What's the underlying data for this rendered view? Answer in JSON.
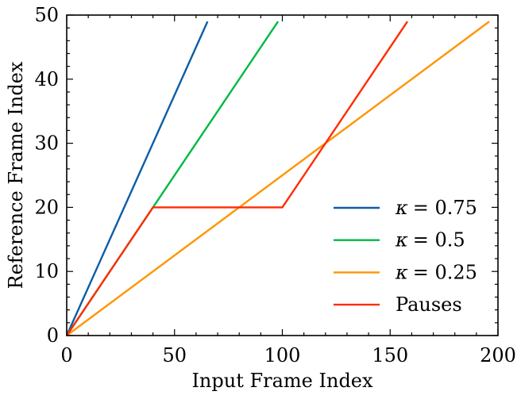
{
  "chart_data": {
    "type": "line",
    "xlabel": "Input Frame Index",
    "ylabel": "Reference Frame Index",
    "xlim": [
      0,
      200
    ],
    "ylim": [
      0,
      50
    ],
    "xticks": [
      0,
      50,
      100,
      150,
      200
    ],
    "yticks": [
      0,
      10,
      20,
      30,
      40,
      50
    ],
    "grid": false,
    "legend_position": "lower-right",
    "series": [
      {
        "name": "κ = 0.75",
        "legend_symbol": "κ",
        "legend_value": "= 0.75",
        "color": "#0C5DA5",
        "points": [
          [
            0,
            0
          ],
          [
            65.3,
            49
          ]
        ]
      },
      {
        "name": "κ = 0.5",
        "legend_symbol": "κ",
        "legend_value": "= 0.5",
        "color": "#00B945",
        "points": [
          [
            0,
            0
          ],
          [
            98,
            49
          ]
        ]
      },
      {
        "name": "κ = 0.25",
        "legend_symbol": "κ",
        "legend_value": "= 0.25",
        "color": "#FF9500",
        "points": [
          [
            0,
            0
          ],
          [
            196,
            49
          ]
        ]
      },
      {
        "name": "Pauses",
        "legend_symbol": "",
        "legend_value": "Pauses",
        "color": "#FF2C00",
        "points": [
          [
            0,
            0
          ],
          [
            40,
            20
          ],
          [
            100,
            20
          ],
          [
            158,
            49
          ]
        ]
      }
    ]
  }
}
